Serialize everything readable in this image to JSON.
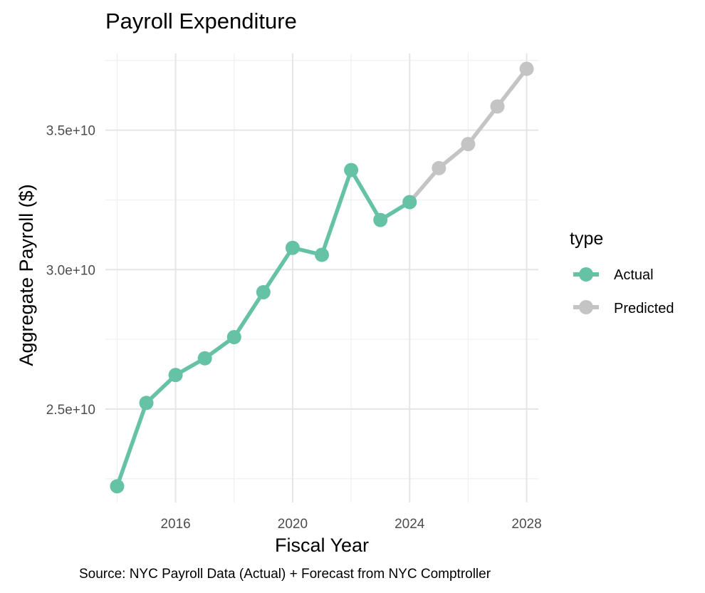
{
  "chart_data": {
    "type": "line",
    "title": "Payroll Expenditure",
    "xlabel": "Fiscal Year",
    "ylabel": "Aggregate Payroll ($)",
    "caption": "Source: NYC Payroll Data (Actual) + Forecast from NYC Comptroller",
    "xlim": [
      2013.6,
      2028.4
    ],
    "ylim": [
      21650000000,
      37750000000
    ],
    "x_ticks": [
      2016,
      2020,
      2024,
      2028
    ],
    "x_tick_labels": [
      "2016",
      "2020",
      "2024",
      "2028"
    ],
    "x_minor_ticks": [
      2014,
      2018,
      2022,
      2026
    ],
    "y_ticks": [
      25000000000,
      30000000000,
      35000000000
    ],
    "y_tick_labels": [
      "2.5e+10",
      "3.0e+10",
      "3.5e+10"
    ],
    "y_minor_ticks": [
      22500000000,
      27500000000,
      32500000000,
      37500000000
    ],
    "grid": true,
    "legend": {
      "title": "type",
      "position": "right",
      "entries": [
        {
          "label": "Actual",
          "color": "#66c2a5"
        },
        {
          "label": "Predicted",
          "color": "#c4c4c4"
        }
      ]
    },
    "series": [
      {
        "name": "Actual",
        "color": "#66c2a5",
        "x": [
          2014,
          2015,
          2016,
          2017,
          2018,
          2019,
          2020,
          2021,
          2022,
          2023,
          2024
        ],
        "y": [
          22230000000,
          25220000000,
          26220000000,
          26820000000,
          27580000000,
          29190000000,
          30780000000,
          30530000000,
          33570000000,
          31780000000,
          32420000000
        ]
      },
      {
        "name": "Predicted",
        "color": "#c4c4c4",
        "x": [
          2024,
          2025,
          2026,
          2027,
          2028
        ],
        "y": [
          32420000000,
          33640000000,
          34500000000,
          35850000000,
          37200000000
        ]
      }
    ]
  }
}
